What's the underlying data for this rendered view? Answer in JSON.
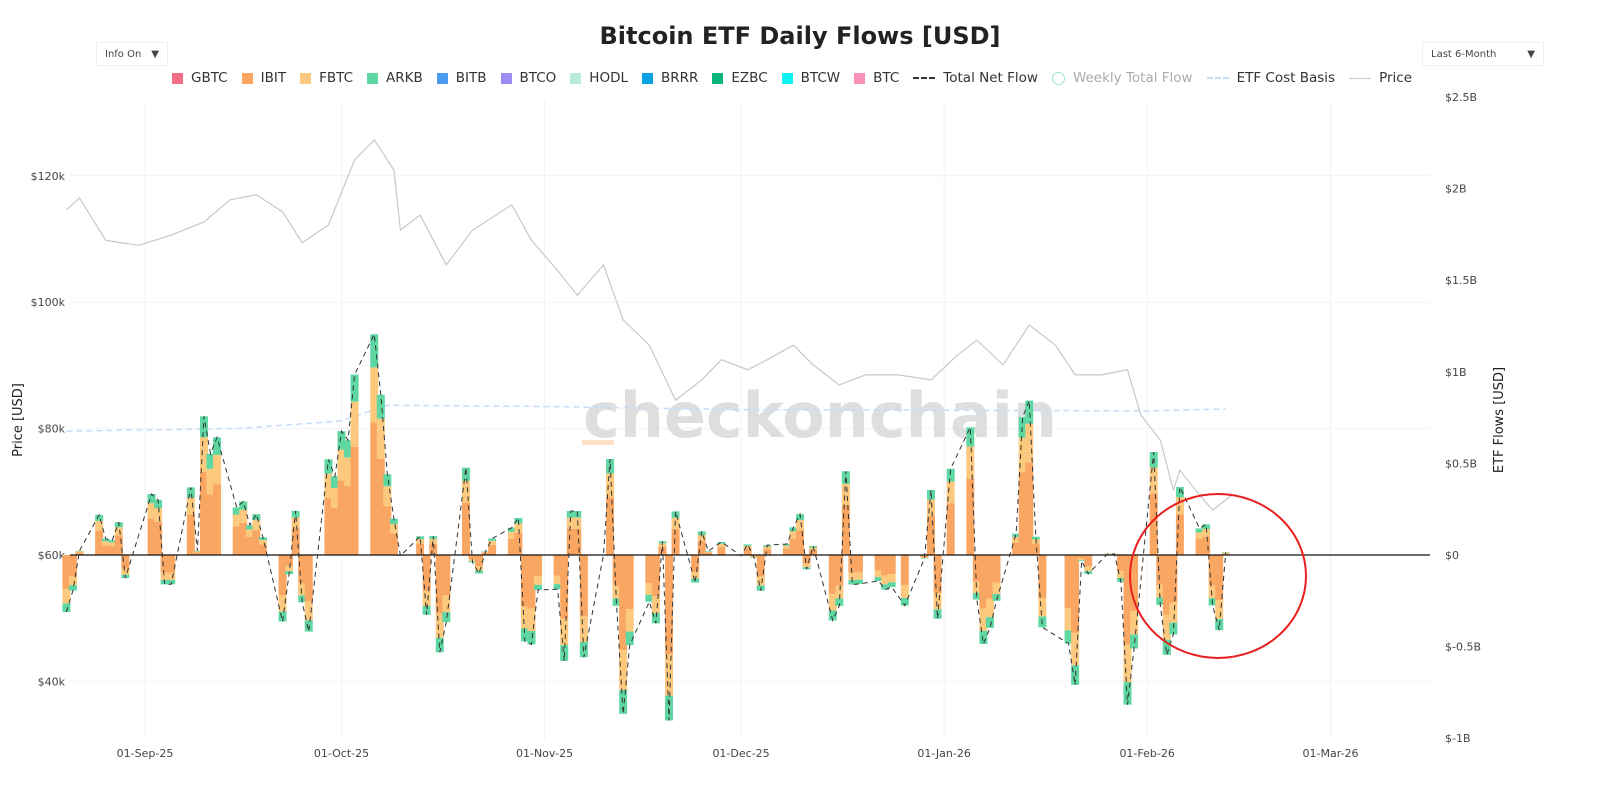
{
  "title": "Bitcoin ETF Daily Flows [USD]",
  "controls": {
    "info_label": "Info On",
    "range_label": "Last 6-Month",
    "arrow": "▼"
  },
  "watermark": "checkonchain",
  "chart_data": {
    "type": "bar",
    "title": "Bitcoin ETF Daily Flows [USD]",
    "stacked": true,
    "legend": [
      {
        "name": "GBTC",
        "color": "#f46d86",
        "kind": "box"
      },
      {
        "name": "IBIT",
        "color": "#f9a662",
        "kind": "box"
      },
      {
        "name": "FBTC",
        "color": "#fcc97e",
        "kind": "box"
      },
      {
        "name": "ARKB",
        "color": "#5ed7a3",
        "kind": "box"
      },
      {
        "name": "BITB",
        "color": "#4b9cf1",
        "kind": "box"
      },
      {
        "name": "BTCO",
        "color": "#9c8cf3",
        "kind": "box"
      },
      {
        "name": "HODL",
        "color": "#b8eed9",
        "kind": "box"
      },
      {
        "name": "BRRR",
        "color": "#0aa2e2",
        "kind": "box"
      },
      {
        "name": "EZBC",
        "color": "#0bb47b",
        "kind": "box"
      },
      {
        "name": "BTCW",
        "color": "#10f2f2",
        "kind": "box"
      },
      {
        "name": "BTC",
        "color": "#f990b8",
        "kind": "box"
      },
      {
        "name": "Total Net Flow",
        "color": "#333333",
        "kind": "dash"
      },
      {
        "name": "Weekly Total Flow",
        "color": "#9be3c6",
        "kind": "circle",
        "hidden": true
      },
      {
        "name": "ETF Cost Basis",
        "color": "#c5ddf7",
        "kind": "dash"
      },
      {
        "name": "Price",
        "color": "#cccccc",
        "kind": "line"
      }
    ],
    "xlabel": "",
    "y_left": {
      "label": "Price [USD]",
      "ticks": [
        "$40k",
        "$60k",
        "$80k",
        "$100k",
        "$120k"
      ],
      "values": [
        40000,
        60000,
        80000,
        100000,
        120000
      ]
    },
    "y_right": {
      "label": "ETF Flows [USD]",
      "ticks": [
        "$-1B",
        "$-0.5B",
        "$0",
        "$0.5B",
        "$1B",
        "$1.5B",
        "$2B",
        "$2.5B"
      ],
      "values": [
        -1000,
        -500,
        0,
        500,
        1000,
        1500,
        2000,
        2500
      ],
      "units": "USD millions"
    },
    "x_ticks": [
      {
        "label": "01-Sep-25",
        "date": "2025-09-01"
      },
      {
        "label": "01-Oct-25",
        "date": "2025-10-01"
      },
      {
        "label": "01-Nov-25",
        "date": "2025-11-01"
      },
      {
        "label": "01-Dec-25",
        "date": "2025-12-01"
      },
      {
        "label": "01-Jan-26",
        "date": "2026-01-01"
      },
      {
        "label": "01-Feb-26",
        "date": "2026-02-01"
      },
      {
        "label": "01-Mar-26",
        "date": "2026-03-01"
      }
    ],
    "flow_units": "USD millions",
    "dates": [
      "2025-08-20",
      "2025-08-21",
      "2025-08-22",
      "2025-08-25",
      "2025-08-26",
      "2025-08-27",
      "2025-08-28",
      "2025-08-29",
      "2025-09-02",
      "2025-09-03",
      "2025-09-04",
      "2025-09-05",
      "2025-09-08",
      "2025-09-09",
      "2025-09-10",
      "2025-09-11",
      "2025-09-12",
      "2025-09-15",
      "2025-09-16",
      "2025-09-17",
      "2025-09-18",
      "2025-09-19",
      "2025-09-22",
      "2025-09-23",
      "2025-09-24",
      "2025-09-25",
      "2025-09-26",
      "2025-09-29",
      "2025-09-30",
      "2025-10-01",
      "2025-10-02",
      "2025-10-03",
      "2025-10-06",
      "2025-10-07",
      "2025-10-08",
      "2025-10-09",
      "2025-10-10",
      "2025-10-13",
      "2025-10-14",
      "2025-10-15",
      "2025-10-16",
      "2025-10-17",
      "2025-10-20",
      "2025-10-21",
      "2025-10-22",
      "2025-10-23",
      "2025-10-24",
      "2025-10-27",
      "2025-10-28",
      "2025-10-29",
      "2025-10-30",
      "2025-10-31",
      "2025-11-03",
      "2025-11-04",
      "2025-11-05",
      "2025-11-06",
      "2025-11-07",
      "2025-11-10",
      "2025-11-11",
      "2025-11-12",
      "2025-11-13",
      "2025-11-14",
      "2025-11-17",
      "2025-11-18",
      "2025-11-19",
      "2025-11-20",
      "2025-11-21",
      "2025-11-24",
      "2025-11-25",
      "2025-11-26",
      "2025-11-28",
      "2025-12-01",
      "2025-12-02",
      "2025-12-03",
      "2025-12-04",
      "2025-12-05",
      "2025-12-08",
      "2025-12-09",
      "2025-12-10",
      "2025-12-11",
      "2025-12-12",
      "2025-12-15",
      "2025-12-16",
      "2025-12-17",
      "2025-12-18",
      "2025-12-19",
      "2025-12-22",
      "2025-12-23",
      "2025-12-24",
      "2025-12-26",
      "2025-12-29",
      "2025-12-30",
      "2025-12-31",
      "2026-01-02",
      "2026-01-05",
      "2026-01-06",
      "2026-01-07",
      "2026-01-08",
      "2026-01-09",
      "2026-01-12",
      "2026-01-13",
      "2026-01-14",
      "2026-01-15",
      "2026-01-16",
      "2026-01-20",
      "2026-01-21",
      "2026-01-22",
      "2026-01-23",
      "2026-01-26",
      "2026-01-27",
      "2026-01-28",
      "2026-01-29",
      "2026-01-30",
      "2026-02-02",
      "2026-02-03",
      "2026-02-04",
      "2026-02-05",
      "2026-02-06",
      "2026-02-09",
      "2026-02-10",
      "2026-02-11",
      "2026-02-12",
      "2026-02-13"
    ],
    "series": [
      {
        "name": "IBIT",
        "values": [
          -187,
          -116,
          14,
          131,
          53,
          49,
          107,
          -76,
          200,
          181,
          -96,
          -96,
          221,
          14,
          454,
          332,
          385,
          156,
          175,
          98,
          134,
          58,
          -218,
          -62,
          145,
          -155,
          -251,
          313,
          258,
          406,
          376,
          591,
          723,
          525,
          265,
          119,
          -3,
          61,
          -196,
          62,
          -319,
          -220,
          286,
          -24,
          -61,
          12,
          54,
          89,
          121,
          -283,
          -293,
          -115,
          -112,
          -347,
          144,
          144,
          -335,
          1,
          314,
          -167,
          -520,
          -295,
          -153,
          -224,
          45,
          -542,
          143,
          -91,
          77,
          13,
          43,
          -2,
          35,
          -9,
          -117,
          32,
          36,
          91,
          134,
          -47,
          29,
          -214,
          -167,
          274,
          -97,
          -95,
          -85,
          -113,
          -105,
          -166,
          -11,
          213,
          -209,
          283,
          418,
          -146,
          -292,
          -239,
          -150,
          70,
          452,
          506,
          60,
          -237,
          -290,
          -425,
          -19,
          -62,
          4,
          4,
          -88,
          -490,
          -306,
          337,
          -163,
          -327,
          -260,
          223,
          87,
          100,
          -166,
          -246,
          9
        ]
      },
      {
        "name": "FBTC",
        "values": [
          -78,
          -49,
          6,
          55,
          22,
          20,
          45,
          -32,
          83,
          75,
          -40,
          -40,
          92,
          6,
          189,
          138,
          161,
          65,
          73,
          41,
          56,
          24,
          -91,
          -26,
          60,
          -65,
          -105,
          131,
          108,
          169,
          157,
          246,
          301,
          219,
          110,
          50,
          -1,
          26,
          -82,
          26,
          -133,
          -92,
          119,
          -10,
          -25,
          5,
          23,
          37,
          51,
          -118,
          -122,
          -48,
          -47,
          -145,
          60,
          60,
          -140,
          0,
          131,
          -70,
          -217,
          -123,
          -64,
          -93,
          19,
          -226,
          60,
          -38,
          32,
          5,
          18,
          -1,
          15,
          -4,
          -49,
          14,
          15,
          38,
          56,
          -20,
          12,
          -89,
          -70,
          114,
          -40,
          -40,
          -36,
          -47,
          -44,
          -69,
          -5,
          89,
          -87,
          118,
          174,
          -61,
          -122,
          -100,
          -63,
          29,
          188,
          211,
          25,
          -99,
          -121,
          -177,
          -8,
          -26,
          2,
          2,
          -37,
          -204,
          -128,
          141,
          -68,
          -136,
          -109,
          93,
          36,
          42,
          -69,
          -103,
          4
        ]
      },
      {
        "name": "ARKB",
        "values": [
          -46,
          -29,
          3,
          33,
          13,
          12,
          27,
          -18,
          50,
          45,
          -24,
          -24,
          56,
          3,
          114,
          83,
          96,
          39,
          44,
          24,
          33,
          15,
          -54,
          -16,
          36,
          -38,
          -62,
          78,
          64,
          101,
          94,
          148,
          181,
          131,
          66,
          29,
          -1,
          15,
          -48,
          15,
          -79,
          -54,
          72,
          -6,
          -15,
          3,
          13,
          23,
          30,
          -70,
          -73,
          -28,
          -28,
          -86,
          36,
          36,
          -83,
          0,
          79,
          -41,
          -130,
          -74,
          -38,
          -56,
          11,
          -135,
          35,
          -22,
          20,
          3,
          10,
          -1,
          8,
          -2,
          -29,
          8,
          9,
          22,
          33,
          -11,
          8,
          -54,
          -41,
          69,
          -24,
          -23,
          -21,
          -29,
          -26,
          -41,
          -3,
          53,
          -52,
          70,
          105,
          -36,
          -72,
          -59,
          -37,
          18,
          113,
          126,
          15,
          -59,
          -72,
          -107,
          -5,
          -15,
          1,
          0,
          -22,
          -123,
          -76,
          84,
          -41,
          -82,
          -65,
          55,
          22,
          25,
          -41,
          -61,
          2
        ]
      }
    ],
    "total_net_flow": [
      -311,
      -194,
      23,
      219,
      88,
      81,
      179,
      -126,
      333,
      301,
      -160,
      -160,
      369,
      23,
      757,
      553,
      642,
      260,
      292,
      163,
      223,
      97,
      -363,
      -104,
      241,
      -258,
      -418,
      522,
      430,
      676,
      627,
      985,
      1205,
      875,
      441,
      198,
      -5,
      102,
      -326,
      103,
      -531,
      -366,
      477,
      -40,
      -101,
      20,
      90,
      149,
      202,
      -471,
      -488,
      -191,
      -187,
      -578,
      240,
      240,
      -558,
      1,
      524,
      -278,
      -867,
      -492,
      -255,
      -373,
      75,
      -903,
      238,
      -151,
      129,
      21,
      71,
      -4,
      58,
      -15,
      -195,
      54,
      60,
      151,
      223,
      -78,
      49,
      -357,
      -278,
      457,
      -161,
      -158,
      -142,
      -189,
      -175,
      -276,
      -19,
      355,
      -348,
      471,
      697,
      -243,
      -486,
      -398,
      -250,
      117,
      753,
      843,
      100,
      -395,
      -483,
      -709,
      -32,
      -103,
      7,
      6,
      -147,
      -817,
      -510,
      562,
      -272,
      -545,
      -434,
      371,
      145,
      167,
      -276,
      -410,
      15
    ],
    "price": {
      "dates": [
        "2025-08-20",
        "2025-08-22",
        "2025-08-26",
        "2025-08-31",
        "2025-09-05",
        "2025-09-10",
        "2025-09-14",
        "2025-09-18",
        "2025-09-22",
        "2025-09-25",
        "2025-09-29",
        "2025-10-03",
        "2025-10-06",
        "2025-10-09",
        "2025-10-10",
        "2025-10-13",
        "2025-10-17",
        "2025-10-21",
        "2025-10-27",
        "2025-10-30",
        "2025-11-03",
        "2025-11-06",
        "2025-11-10",
        "2025-11-13",
        "2025-11-17",
        "2025-11-21",
        "2025-11-25",
        "2025-11-28",
        "2025-12-02",
        "2025-12-05",
        "2025-12-09",
        "2025-12-12",
        "2025-12-16",
        "2025-12-20",
        "2025-12-25",
        "2025-12-30",
        "2026-01-03",
        "2026-01-06",
        "2026-01-10",
        "2026-01-14",
        "2026-01-18",
        "2026-01-21",
        "2026-01-25",
        "2026-01-29",
        "2026-01-31",
        "2026-02-03",
        "2026-02-05",
        "2026-02-06",
        "2026-02-09",
        "2026-02-11",
        "2026-02-13",
        "2026-02-14"
      ],
      "values": [
        114600,
        116500,
        109800,
        109000,
        110600,
        112700,
        116200,
        117000,
        114300,
        109400,
        112200,
        122500,
        125700,
        120900,
        111400,
        113800,
        105900,
        111400,
        115400,
        109800,
        105000,
        101100,
        105900,
        97200,
        93200,
        84500,
        87700,
        90900,
        89300,
        90900,
        93200,
        90100,
        86900,
        88500,
        88500,
        87700,
        91600,
        94000,
        90100,
        96400,
        93200,
        88500,
        88500,
        89300,
        82200,
        78200,
        70300,
        73400,
        69500,
        67100,
        68700,
        69500
      ]
    },
    "etf_cost_basis": {
      "dates": [
        "2025-08-20",
        "2025-09-15",
        "2025-10-01",
        "2025-10-08",
        "2025-11-01",
        "2025-12-01",
        "2026-01-01",
        "2026-02-01",
        "2026-02-13"
      ],
      "values": [
        79600,
        80000,
        81200,
        83700,
        83500,
        83000,
        82900,
        82800,
        83100
      ]
    },
    "annotations": [
      {
        "type": "circle",
        "color": "#e8201f",
        "around": "2026-02-01 to 2026-02-13"
      }
    ]
  }
}
